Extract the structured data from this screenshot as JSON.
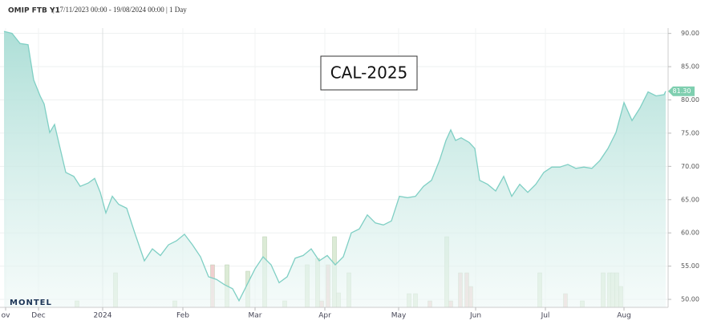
{
  "chart_data": {
    "type": "area",
    "title": "OMIP FTB Y1",
    "subtitle": "| 17/11/2023 00:00 - 19/08/2024 00:00 | 1 Day",
    "annotation": "CAL-2025",
    "logo": "MONTEL",
    "last_label": "81.30",
    "color": "#7fcfc4",
    "xlim": [
      5,
      830
    ],
    "xticks": [
      {
        "value": 7,
        "label": "ov"
      },
      {
        "value": 48,
        "label": "Dec"
      },
      {
        "value": 128,
        "label": "2024"
      },
      {
        "value": 228,
        "label": "Feb"
      },
      {
        "value": 318,
        "label": "Mar"
      },
      {
        "value": 405,
        "label": "Apr"
      },
      {
        "value": 497,
        "label": "May"
      },
      {
        "value": 593,
        "label": "Jun"
      },
      {
        "value": 680,
        "label": "Jul"
      },
      {
        "value": 778,
        "label": "Aug"
      }
    ],
    "ylim": [
      48.8,
      90.8
    ],
    "yticks": [
      {
        "value": 50,
        "label": "50.00"
      },
      {
        "value": 55,
        "label": "55.00"
      },
      {
        "value": 60,
        "label": "60.00"
      },
      {
        "value": 65,
        "label": "65.00"
      },
      {
        "value": 70,
        "label": "70.00"
      },
      {
        "value": 75,
        "label": "75.00"
      },
      {
        "value": 80,
        "label": "80.00"
      },
      {
        "value": 85,
        "label": "85.00"
      },
      {
        "value": 90,
        "label": "90.00"
      }
    ],
    "grid": true,
    "x": [
      5,
      15,
      25,
      35,
      42,
      50,
      55,
      62,
      68,
      75,
      82,
      92,
      100,
      110,
      118,
      125,
      132,
      140,
      148,
      158,
      168,
      180,
      190,
      200,
      210,
      220,
      230,
      240,
      250,
      260,
      270,
      280,
      290,
      298,
      308,
      318,
      328,
      338,
      348,
      358,
      368,
      378,
      388,
      398,
      408,
      418,
      428,
      438,
      448,
      458,
      468,
      478,
      488,
      498,
      508,
      518,
      528,
      538,
      548,
      556,
      562,
      568,
      575,
      585,
      592,
      598,
      608,
      618,
      628,
      638,
      648,
      658,
      668,
      678,
      688,
      698,
      708,
      718,
      728,
      738,
      748,
      758,
      768,
      778,
      788,
      798,
      808,
      818,
      828,
      830
    ],
    "values": [
      90.3,
      90.0,
      88.5,
      88.3,
      83.0,
      80.6,
      79.4,
      75.1,
      76.3,
      72.7,
      69.1,
      68.5,
      67.0,
      67.5,
      68.2,
      66.1,
      63.0,
      65.5,
      64.3,
      63.7,
      60.0,
      55.8,
      57.6,
      56.6,
      58.2,
      58.8,
      59.8,
      58.2,
      56.4,
      53.4,
      53.0,
      52.2,
      51.6,
      49.8,
      52.2,
      54.6,
      56.4,
      55.2,
      52.5,
      53.4,
      56.2,
      56.6,
      57.6,
      55.8,
      56.6,
      55.2,
      56.4,
      60.0,
      60.6,
      62.7,
      61.5,
      61.2,
      61.8,
      65.5,
      65.3,
      65.5,
      67.0,
      67.9,
      70.9,
      73.9,
      75.5,
      73.9,
      74.3,
      73.6,
      72.7,
      67.9,
      67.3,
      66.3,
      68.5,
      65.5,
      67.3,
      66.1,
      67.3,
      69.1,
      69.9,
      69.9,
      70.3,
      69.7,
      69.9,
      69.7,
      70.9,
      72.7,
      75.1,
      79.6,
      76.9,
      78.8,
      81.2,
      80.6,
      80.8,
      81.3
    ],
    "volume": {
      "axis": "y2",
      "x": [
        96,
        144,
        218,
        265,
        283,
        309,
        330,
        355,
        383,
        396,
        401,
        409,
        417,
        422,
        435,
        510,
        518,
        536,
        557,
        562,
        574,
        582,
        587,
        673,
        705,
        726,
        752,
        760,
        764,
        769,
        774
      ],
      "values": [
        8,
        43,
        8,
        53,
        53,
        45,
        88,
        8,
        53,
        61,
        8,
        53,
        88,
        18,
        43,
        17,
        17,
        8,
        88,
        8,
        43,
        43,
        26,
        43,
        17,
        8,
        43,
        43,
        43,
        43,
        26
      ],
      "colors": [
        "#dcebd6",
        "#dcebd6",
        "#dcebd6",
        "#f0cfcf",
        "#dcebd6",
        "#dcebd6",
        "#dcebd6",
        "#dcebd6",
        "#dcebd6",
        "#dcebd6",
        "#f0cfcf",
        "#f0cfcf",
        "#dcebd6",
        "#dcebd6",
        "#dcebd6",
        "#dcebd6",
        "#dcebd6",
        "#f0cfcf",
        "#dcebd6",
        "#f0cfcf",
        "#f0cfcf",
        "#f0cfcf",
        "#f0cfcf",
        "#dcebd6",
        "#f0cfcf",
        "#dcebd6",
        "#dcebd6",
        "#dcebd6",
        "#dcebd6",
        "#dcebd6",
        "#dcebd6"
      ]
    },
    "y2lim": [
      0,
      100
    ]
  }
}
